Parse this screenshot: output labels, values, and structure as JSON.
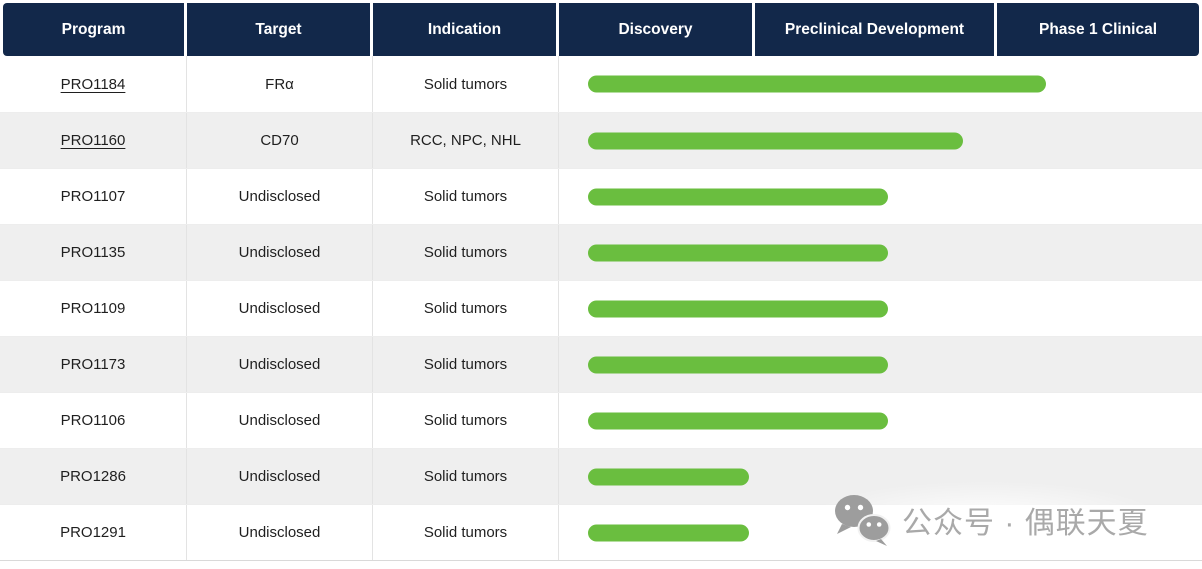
{
  "colors": {
    "header_bg": "#12284a",
    "header_text": "#ffffff",
    "bar_green": "#6abe3f",
    "row_bg": "#ffffff",
    "row_alt_bg": "#efefef",
    "grid_line": "#e3e3e3",
    "body_text": "#1f1f1f",
    "watermark": "#a9a9a9"
  },
  "header": {
    "columns": [
      "Program",
      "Target",
      "Indication",
      "Discovery",
      "Preclinical Development",
      "Phase 1 Clinical"
    ]
  },
  "pipeline": {
    "rows": [
      {
        "program": "PRO1184",
        "link": true,
        "target": "FRα",
        "indication": "Solid tumors",
        "bar": {
          "start": 0.045,
          "end": 0.757
        }
      },
      {
        "program": "PRO1160",
        "link": true,
        "target": "CD70",
        "indication": "RCC, NPC, NHL",
        "bar": {
          "start": 0.045,
          "end": 0.628
        }
      },
      {
        "program": "PRO1107",
        "link": false,
        "target": "Undisclosed",
        "indication": "Solid tumors",
        "bar": {
          "start": 0.045,
          "end": 0.512
        }
      },
      {
        "program": "PRO1135",
        "link": false,
        "target": "Undisclosed",
        "indication": "Solid tumors",
        "bar": {
          "start": 0.045,
          "end": 0.512
        }
      },
      {
        "program": "PRO1109",
        "link": false,
        "target": "Undisclosed",
        "indication": "Solid tumors",
        "bar": {
          "start": 0.045,
          "end": 0.512
        }
      },
      {
        "program": "PRO1173",
        "link": false,
        "target": "Undisclosed",
        "indication": "Solid tumors",
        "bar": {
          "start": 0.045,
          "end": 0.512
        }
      },
      {
        "program": "PRO1106",
        "link": false,
        "target": "Undisclosed",
        "indication": "Solid tumors",
        "bar": {
          "start": 0.045,
          "end": 0.512
        }
      },
      {
        "program": "PRO1286",
        "link": false,
        "target": "Undisclosed",
        "indication": "Solid tumors",
        "bar": {
          "start": 0.045,
          "end": 0.296
        }
      },
      {
        "program": "PRO1291",
        "link": false,
        "target": "Undisclosed",
        "indication": "Solid tumors",
        "bar": {
          "start": 0.045,
          "end": 0.296
        }
      }
    ]
  },
  "chart_data": {
    "type": "table",
    "title": "Pipeline programs by development stage",
    "columns": [
      "Program",
      "Target",
      "Indication",
      "Discovery",
      "Preclinical Development",
      "Phase 1 Clinical"
    ],
    "stages": [
      "Discovery",
      "Preclinical Development",
      "Phase 1 Clinical"
    ],
    "stage_area_fractions": {
      "discovery_end": 0.305,
      "preclinical_end": 0.681,
      "phase1_end": 1.0
    },
    "bar_color": "#6abe3f",
    "rows": [
      {
        "program": "PRO1184",
        "target": "FRα",
        "indication": "Solid tumors",
        "stage_progress": 2.24,
        "furthest_stage": "Phase 1 Clinical"
      },
      {
        "program": "PRO1160",
        "target": "CD70",
        "indication": "RCC, NPC, NHL",
        "stage_progress": 1.86,
        "furthest_stage": "Preclinical Development"
      },
      {
        "program": "PRO1107",
        "target": "Undisclosed",
        "indication": "Solid tumors",
        "stage_progress": 1.55,
        "furthest_stage": "Preclinical Development"
      },
      {
        "program": "PRO1135",
        "target": "Undisclosed",
        "indication": "Solid tumors",
        "stage_progress": 1.55,
        "furthest_stage": "Preclinical Development"
      },
      {
        "program": "PRO1109",
        "target": "Undisclosed",
        "indication": "Solid tumors",
        "stage_progress": 1.55,
        "furthest_stage": "Preclinical Development"
      },
      {
        "program": "PRO1173",
        "target": "Undisclosed",
        "indication": "Solid tumors",
        "stage_progress": 1.55,
        "furthest_stage": "Preclinical Development"
      },
      {
        "program": "PRO1106",
        "target": "Undisclosed",
        "indication": "Solid tumors",
        "stage_progress": 1.55,
        "furthest_stage": "Preclinical Development"
      },
      {
        "program": "PRO1286",
        "target": "Undisclosed",
        "indication": "Solid tumors",
        "stage_progress": 0.97,
        "furthest_stage": "Discovery"
      },
      {
        "program": "PRO1291",
        "target": "Undisclosed",
        "indication": "Solid tumors",
        "stage_progress": 0.97,
        "furthest_stage": "Discovery"
      }
    ]
  },
  "watermark": {
    "text": "公众号 · 偶联天夏",
    "icon": "wechat-icon"
  }
}
